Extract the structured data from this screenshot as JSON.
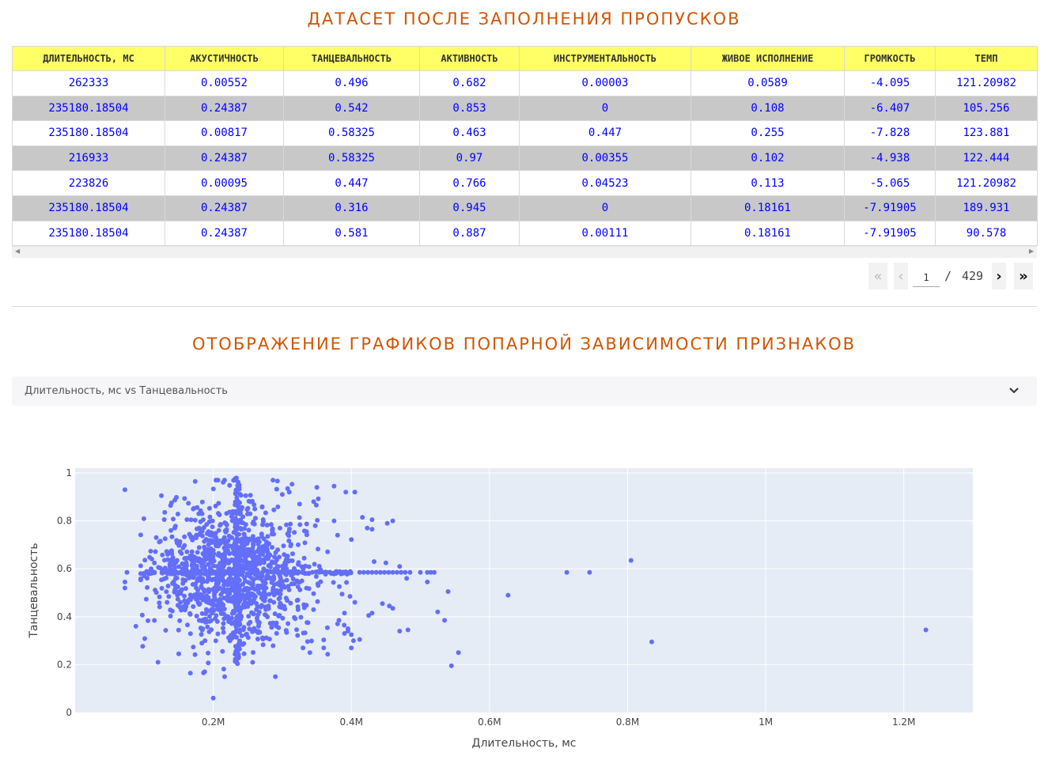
{
  "section1_title": "ДАТАСЕТ ПОСЛЕ ЗАПОЛНЕНИЯ ПРОПУСКОВ",
  "section2_title": "ОТОБРАЖЕНИЕ ГРАФИКОВ ПОПАРНОЙ ЗАВИСИМОСТИ ПРИЗНАКОВ",
  "table": {
    "columns": [
      "ДЛИТЕЛЬНОСТЬ, МС",
      "АКУСТИЧНОСТЬ",
      "ТАНЦЕВАЛЬНОСТЬ",
      "АКТИВНОСТЬ",
      "ИНСТРУМЕНТАЛЬНОСТЬ",
      "ЖИВОЕ ИСПОЛНЕНИЕ",
      "ГРОМКОСТЬ",
      "ТЕМП"
    ],
    "rows": [
      [
        "262333",
        "0.00552",
        "0.496",
        "0.682",
        "0.00003",
        "0.0589",
        "-4.095",
        "121.20982"
      ],
      [
        "235180.18504",
        "0.24387",
        "0.542",
        "0.853",
        "0",
        "0.108",
        "-6.407",
        "105.256"
      ],
      [
        "235180.18504",
        "0.00817",
        "0.58325",
        "0.463",
        "0.447",
        "0.255",
        "-7.828",
        "123.881"
      ],
      [
        "216933",
        "0.24387",
        "0.58325",
        "0.97",
        "0.00355",
        "0.102",
        "-4.938",
        "122.444"
      ],
      [
        "223826",
        "0.00095",
        "0.447",
        "0.766",
        "0.04523",
        "0.113",
        "-5.065",
        "121.20982"
      ],
      [
        "235180.18504",
        "0.24387",
        "0.316",
        "0.945",
        "0",
        "0.18161",
        "-7.91905",
        "189.931"
      ],
      [
        "235180.18504",
        "0.24387",
        "0.581",
        "0.887",
        "0.00111",
        "0.18161",
        "-7.91905",
        "90.578"
      ]
    ]
  },
  "pager": {
    "current_page": "1",
    "separator": "/",
    "total_pages": "429",
    "first_icon": "«",
    "prev_icon": "‹",
    "next_icon": "›",
    "last_icon": "»"
  },
  "dropdown": {
    "selected": "Длительность, мс vs Танцевальность",
    "icon": "chevron-down-icon"
  },
  "colors": {
    "title": "#d35400",
    "header_bg": "#ffff66",
    "cell_text": "#0000ff",
    "even_row": "#c8c8c8",
    "marker": "#636efa",
    "plot_bg": "#e5ecf6"
  },
  "chart_data": {
    "type": "scatter",
    "title": "",
    "xlabel": "Длительность, мс",
    "ylabel": "Танцевальность",
    "xlim": [
      0,
      1300000
    ],
    "ylim": [
      0,
      1.02
    ],
    "x_ticks": [
      200000,
      400000,
      600000,
      800000,
      1000000,
      1200000
    ],
    "x_tick_labels": [
      "0.2M",
      "0.4M",
      "0.6M",
      "0.8M",
      "1M",
      "1.2M"
    ],
    "y_ticks": [
      0,
      0.2,
      0.4,
      0.6,
      0.8,
      1
    ],
    "y_tick_labels": [
      "0",
      "0.2",
      "0.4",
      "0.6",
      "0.8",
      "1"
    ],
    "cluster_center": [
      235180.18504,
      0.58325
    ],
    "series": [
      {
        "name": "Длительность, мс vs Танцевальность",
        "points": [
          [
            75000,
            0.585
          ],
          [
            72000,
            0.545
          ],
          [
            72000,
            0.52
          ],
          [
            88000,
            0.36
          ],
          [
            72000,
            0.93
          ],
          [
            125000,
            0.905
          ],
          [
            95000,
            0.58
          ],
          [
            100000,
            0.57
          ],
          [
            110000,
            0.6
          ],
          [
            200000,
            0.06
          ],
          [
            120000,
            0.21
          ],
          [
            150000,
            0.245
          ],
          [
            290000,
            0.15
          ],
          [
            300000,
            0.91
          ],
          [
            310000,
            0.92
          ],
          [
            325000,
            0.87
          ],
          [
            350000,
            0.94
          ],
          [
            375000,
            0.945
          ],
          [
            392000,
            0.92
          ],
          [
            405000,
            0.92
          ],
          [
            380000,
            0.74
          ],
          [
            375000,
            0.8
          ],
          [
            335000,
            0.755
          ],
          [
            323000,
            0.7
          ],
          [
            398000,
            0.485
          ],
          [
            390000,
            0.415
          ],
          [
            382000,
            0.385
          ],
          [
            395000,
            0.34
          ],
          [
            390000,
            0.33
          ],
          [
            360000,
            0.27
          ],
          [
            340000,
            0.25
          ],
          [
            330000,
            0.27
          ],
          [
            430000,
            0.805
          ],
          [
            416000,
            0.815
          ],
          [
            412000,
            0.585
          ],
          [
            418000,
            0.585
          ],
          [
            424000,
            0.585
          ],
          [
            430000,
            0.585
          ],
          [
            436000,
            0.585
          ],
          [
            442000,
            0.585
          ],
          [
            448000,
            0.585
          ],
          [
            454000,
            0.585
          ],
          [
            460000,
            0.585
          ],
          [
            466000,
            0.585
          ],
          [
            472000,
            0.585
          ],
          [
            478000,
            0.585
          ],
          [
            485000,
            0.585
          ],
          [
            510000,
            0.585
          ],
          [
            515000,
            0.585
          ],
          [
            520000,
            0.585
          ],
          [
            423000,
            0.77
          ],
          [
            430000,
            0.765
          ],
          [
            452000,
            0.79
          ],
          [
            460000,
            0.8
          ],
          [
            433000,
            0.63
          ],
          [
            450000,
            0.625
          ],
          [
            470000,
            0.61
          ],
          [
            480000,
            0.56
          ],
          [
            500000,
            0.585
          ],
          [
            510000,
            0.545
          ],
          [
            405000,
            0.46
          ],
          [
            425000,
            0.405
          ],
          [
            430000,
            0.415
          ],
          [
            445000,
            0.455
          ],
          [
            455000,
            0.445
          ],
          [
            460000,
            0.435
          ],
          [
            470000,
            0.34
          ],
          [
            482000,
            0.345
          ],
          [
            400000,
            0.325
          ],
          [
            403000,
            0.3
          ],
          [
            412000,
            0.305
          ],
          [
            380000,
            0.37
          ],
          [
            395000,
            0.35
          ],
          [
            400000,
            0.27
          ],
          [
            525000,
            0.42
          ],
          [
            535000,
            0.385
          ],
          [
            540000,
            0.505
          ],
          [
            545000,
            0.195
          ],
          [
            555000,
            0.25
          ],
          [
            627000,
            0.49
          ],
          [
            712000,
            0.585
          ],
          [
            745000,
            0.585
          ],
          [
            805000,
            0.635
          ],
          [
            835000,
            0.295
          ],
          [
            1232000,
            0.345
          ]
        ]
      }
    ]
  }
}
